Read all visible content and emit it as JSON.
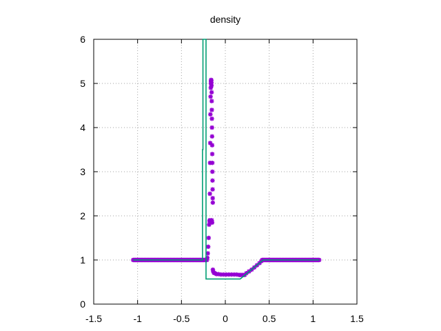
{
  "chart_data": {
    "type": "line",
    "title": "density",
    "xlabel": "",
    "ylabel": "",
    "xlim": [
      -1.5,
      1.5
    ],
    "ylim": [
      0,
      6
    ],
    "grid": true,
    "xticks": [
      -1.5,
      -1,
      -0.5,
      0,
      0.5,
      1,
      1.5
    ],
    "xtick_labels": [
      "-1.5",
      "-1",
      "-0.5",
      "0",
      "0.5",
      "1",
      "1.5"
    ],
    "yticks": [
      0,
      1,
      2,
      3,
      4,
      5,
      6
    ],
    "ytick_labels": [
      "0",
      "1",
      "2",
      "3",
      "4",
      "5",
      "6"
    ],
    "colors": {
      "points": "#9400d3",
      "line": "#009e73",
      "grid": "#a0a0a0"
    },
    "series": [
      {
        "kind": "points",
        "segments": [
          {
            "x_from": -1.05,
            "x_to": -0.21,
            "y": 1.0,
            "n": 85
          },
          {
            "x_from": 0.16,
            "x_to": 0.22,
            "y": 0.66,
            "n": 5
          },
          {
            "x_from": 0.42,
            "x_to": 1.07,
            "y": 1.0,
            "n": 66
          }
        ],
        "points": [
          [
            -0.205,
            1.05
          ],
          [
            -0.2,
            1.15
          ],
          [
            -0.195,
            1.3
          ],
          [
            -0.19,
            1.5
          ],
          [
            -0.185,
            1.8
          ],
          [
            -0.18,
            1.88
          ],
          [
            -0.178,
            1.9
          ],
          [
            -0.176,
            2.5
          ],
          [
            -0.174,
            3.2
          ],
          [
            -0.172,
            3.65
          ],
          [
            -0.17,
            4.3
          ],
          [
            -0.168,
            4.7
          ],
          [
            -0.166,
            4.9
          ],
          [
            -0.165,
            5.0
          ],
          [
            -0.163,
            5.05
          ],
          [
            -0.162,
            5.08
          ],
          [
            -0.16,
            5.07
          ],
          [
            -0.158,
            5.02
          ],
          [
            -0.157,
            4.95
          ],
          [
            -0.156,
            4.8
          ],
          [
            -0.155,
            4.6
          ],
          [
            -0.154,
            4.4
          ],
          [
            -0.153,
            4.2
          ],
          [
            -0.152,
            4.0
          ],
          [
            -0.151,
            3.8
          ],
          [
            -0.15,
            3.6
          ],
          [
            -0.149,
            3.4
          ],
          [
            -0.148,
            3.2
          ],
          [
            -0.147,
            3.0
          ],
          [
            -0.146,
            2.8
          ],
          [
            -0.145,
            2.6
          ],
          [
            -0.144,
            2.4
          ],
          [
            -0.143,
            2.3
          ],
          [
            -0.155,
            1.9
          ],
          [
            -0.152,
            1.85
          ],
          [
            -0.15,
            1.85
          ],
          [
            -0.142,
            0.78
          ],
          [
            -0.138,
            0.74
          ],
          [
            -0.13,
            0.71
          ],
          [
            -0.12,
            0.7
          ],
          [
            -0.1,
            0.68
          ],
          [
            -0.08,
            0.68
          ],
          [
            -0.05,
            0.67
          ],
          [
            -0.02,
            0.67
          ],
          [
            0.01,
            0.67
          ],
          [
            0.04,
            0.67
          ],
          [
            0.07,
            0.67
          ],
          [
            0.1,
            0.67
          ],
          [
            0.13,
            0.67
          ],
          [
            0.24,
            0.7
          ],
          [
            0.27,
            0.74
          ],
          [
            0.3,
            0.78
          ],
          [
            0.33,
            0.83
          ],
          [
            0.36,
            0.88
          ],
          [
            0.39,
            0.93
          ],
          [
            0.41,
            0.97
          ]
        ]
      },
      {
        "kind": "line",
        "points": [
          [
            -1.05,
            1.0
          ],
          [
            -0.26,
            1.0
          ],
          [
            -0.26,
            3.5
          ],
          [
            -0.255,
            3.5
          ],
          [
            -0.255,
            6.0
          ],
          [
            -0.22,
            6.0
          ],
          [
            -0.22,
            0.57
          ],
          [
            0.17,
            0.57
          ],
          [
            0.43,
            1.0
          ],
          [
            1.07,
            1.0
          ]
        ]
      }
    ]
  }
}
